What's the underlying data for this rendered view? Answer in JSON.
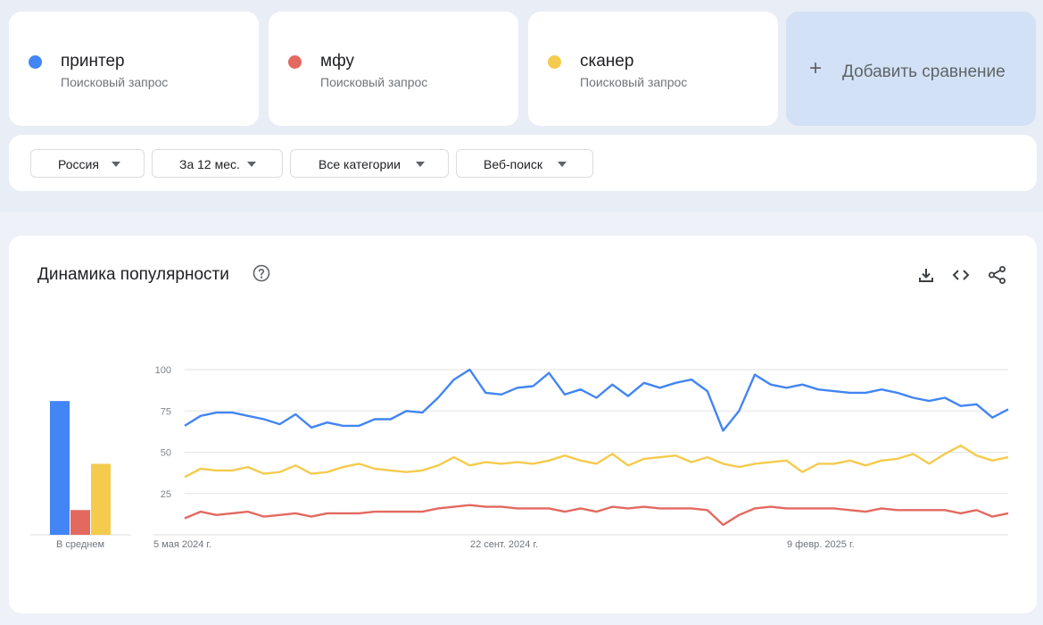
{
  "terms": [
    {
      "name": "принтер",
      "sub": "Поисковый запрос",
      "color": "#4285f4"
    },
    {
      "name": "мфу",
      "sub": "Поисковый запрос",
      "color": "#e3695f"
    },
    {
      "name": "сканер",
      "sub": "Поисковый запрос",
      "color": "#f4cb4d"
    }
  ],
  "add_comparison": "Добавить сравнение",
  "filters": {
    "region": "Россия",
    "period": "За 12 мес.",
    "category": "Все категории",
    "search_type": "Веб-поиск"
  },
  "chart": {
    "title": "Динамика популярности",
    "avg_label": "В среднем",
    "icons": [
      "download-icon",
      "embed-icon",
      "share-icon"
    ]
  },
  "chart_data": {
    "type": "line",
    "x_tick_labels": [
      "5 мая 2024 г.",
      "22 сент. 2024 г.",
      "9 февр. 2025 г."
    ],
    "y_ticks": [
      25,
      50,
      75,
      100
    ],
    "ylim": [
      0,
      100
    ],
    "grid": true,
    "averages": [
      {
        "name": "принтер",
        "value": 81
      },
      {
        "name": "мфу",
        "value": 15
      },
      {
        "name": "сканер",
        "value": 43
      }
    ],
    "series": [
      {
        "name": "принтер",
        "color": "#4285f4",
        "values": [
          66,
          72,
          74,
          74,
          72,
          70,
          67,
          73,
          65,
          68,
          66,
          66,
          70,
          70,
          75,
          74,
          83,
          94,
          100,
          86,
          85,
          89,
          90,
          98,
          85,
          88,
          83,
          91,
          84,
          92,
          89,
          92,
          94,
          87,
          63,
          75,
          97,
          91,
          89,
          91,
          88,
          87,
          86,
          86,
          88,
          86,
          83,
          81,
          83,
          78,
          79,
          71,
          76
        ]
      },
      {
        "name": "мфу",
        "color": "#e3695f",
        "values": [
          10,
          14,
          12,
          13,
          14,
          11,
          12,
          13,
          11,
          13,
          13,
          13,
          14,
          14,
          14,
          14,
          16,
          17,
          18,
          17,
          17,
          16,
          16,
          16,
          14,
          16,
          14,
          17,
          16,
          17,
          16,
          16,
          16,
          15,
          6,
          12,
          16,
          17,
          16,
          16,
          16,
          16,
          15,
          14,
          16,
          15,
          15,
          15,
          15,
          13,
          15,
          11,
          13
        ]
      },
      {
        "name": "сканер",
        "color": "#f4cb4d",
        "values": [
          35,
          40,
          39,
          39,
          41,
          37,
          38,
          42,
          37,
          38,
          41,
          43,
          40,
          39,
          38,
          39,
          42,
          47,
          42,
          44,
          43,
          44,
          43,
          45,
          48,
          45,
          43,
          49,
          42,
          46,
          47,
          48,
          44,
          47,
          43,
          41,
          43,
          44,
          45,
          38,
          43,
          43,
          45,
          42,
          45,
          46,
          49,
          43,
          49,
          54,
          48,
          45,
          47
        ]
      }
    ]
  }
}
